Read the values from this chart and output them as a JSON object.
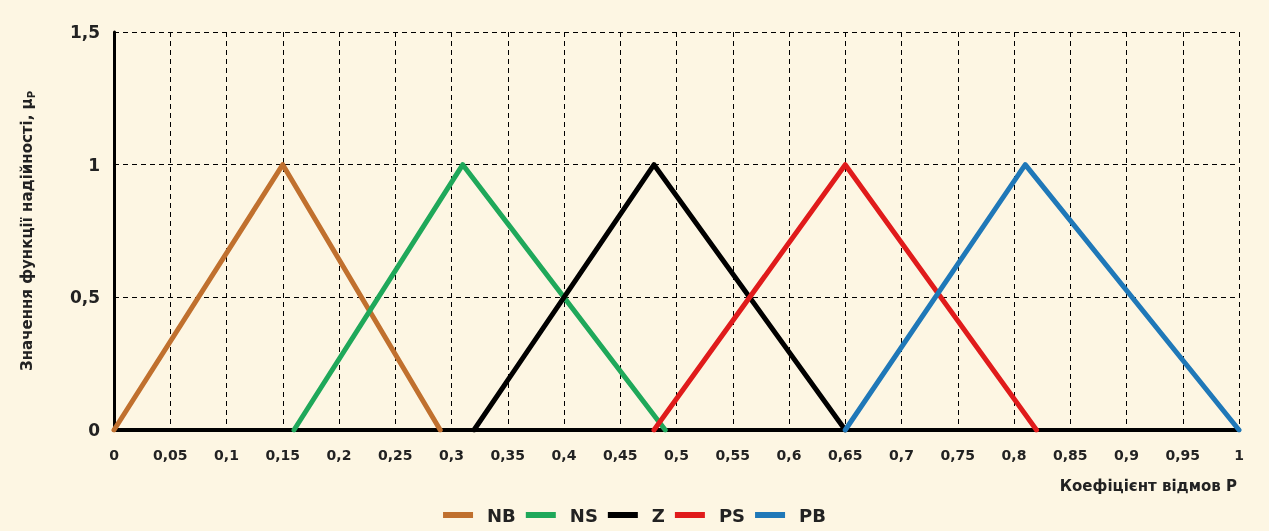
{
  "chart_data": {
    "type": "line",
    "xlabel": "Коефіцієнт відмов P",
    "ylabel": "Значення функції надійності, μ$_{P}$",
    "series": [
      {
        "name": "NB",
        "color": "#c0702e",
        "x": [
          0,
          0.15,
          0.29
        ],
        "values": [
          0,
          1,
          0
        ]
      },
      {
        "name": "NS",
        "color": "#1fa85a",
        "x": [
          0.16,
          0.31,
          0.49
        ],
        "values": [
          0,
          1,
          0
        ]
      },
      {
        "name": "Z",
        "color": "#000000",
        "x": [
          0.32,
          0.48,
          0.65
        ],
        "values": [
          0,
          1,
          0
        ]
      },
      {
        "name": "PS",
        "color": "#e01b1b",
        "x": [
          0.48,
          0.65,
          0.82
        ],
        "values": [
          0,
          1,
          0
        ]
      },
      {
        "name": "PB",
        "color": "#1f78b8",
        "x": [
          0.65,
          0.81,
          1
        ],
        "values": [
          0,
          1,
          0
        ]
      }
    ],
    "xlim": [
      0,
      1
    ],
    "xticks": [
      0,
      {
        "value": 0.05,
        "label": "0,05"
      },
      {
        "value": 0.1,
        "label": "0,1"
      },
      {
        "value": 0.15,
        "label": "0,15"
      },
      {
        "value": 0.2,
        "label": "0,2"
      },
      {
        "value": 0.25,
        "label": "0,25"
      },
      {
        "value": 0.3,
        "label": "0,3"
      },
      {
        "value": 0.35,
        "label": "0,35"
      },
      {
        "value": 0.4,
        "label": "0,4"
      },
      {
        "value": 0.45,
        "label": "0,45"
      },
      {
        "value": 0.5,
        "label": "0,5"
      },
      {
        "value": 0.55,
        "label": "0,55"
      },
      {
        "value": 0.6,
        "label": "0,6"
      },
      {
        "value": 0.65,
        "label": "0,65"
      },
      {
        "value": 0.7,
        "label": "0,7"
      },
      {
        "value": 0.75,
        "label": "0,75"
      },
      {
        "value": 0.8,
        "label": "0,8"
      },
      {
        "value": 0.85,
        "label": "0,85"
      },
      {
        "value": 0.9,
        "label": "0,9"
      },
      {
        "value": 0.95,
        "label": "0,95"
      },
      1
    ],
    "ylim": [
      0,
      1.5
    ],
    "yticks": [
      0,
      {
        "value": 0.5,
        "label": "0,5"
      },
      1,
      {
        "value": 1.5,
        "label": "1,5"
      }
    ],
    "grid": true,
    "legend": "bottom",
    "marker": "none",
    "line_style": "solid"
  }
}
